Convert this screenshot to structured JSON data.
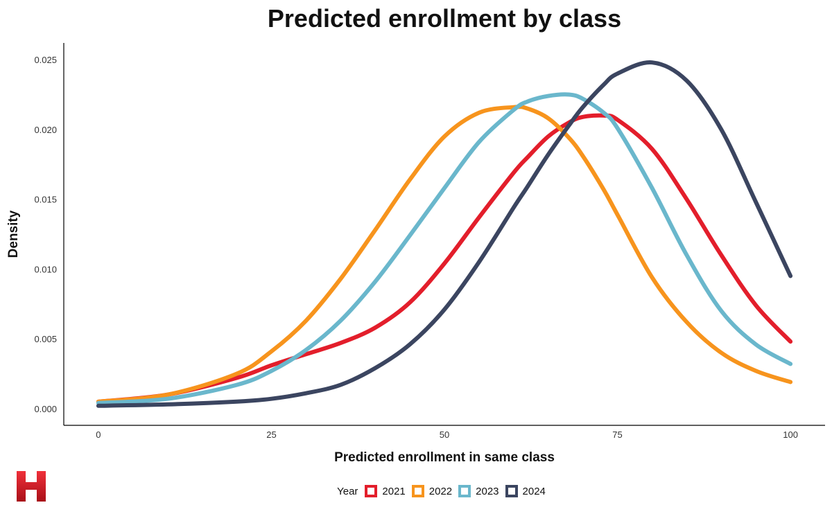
{
  "chart_data": {
    "type": "line",
    "title": "Predicted enrollment by class",
    "xlabel": "Predicted enrollment in same class",
    "ylabel": "Density",
    "xlim": [
      -5,
      105
    ],
    "ylim": [
      -0.0012,
      0.0262
    ],
    "x_ticks": [
      0,
      25,
      50,
      75,
      100
    ],
    "x_tick_labels": [
      "0",
      "25",
      "50",
      "75",
      "100"
    ],
    "y_ticks": [
      0.0,
      0.005,
      0.01,
      0.015,
      0.02,
      0.025
    ],
    "y_tick_labels": [
      "0.000",
      "0.005",
      "0.010",
      "0.015",
      "0.020",
      "0.025"
    ],
    "grid": false,
    "legend_title": "Year",
    "legend_position": "bottom",
    "x": [
      0,
      10,
      20,
      25,
      30,
      35,
      40,
      45,
      50,
      55,
      60,
      62,
      65,
      68,
      70,
      73,
      75,
      80,
      85,
      90,
      95,
      100
    ],
    "series": [
      {
        "name": "2021",
        "color": "#e31e2b",
        "values": [
          0.0005,
          0.001,
          0.0022,
          0.0031,
          0.0039,
          0.0047,
          0.0058,
          0.0076,
          0.0104,
          0.0137,
          0.0169,
          0.018,
          0.0195,
          0.0205,
          0.0209,
          0.021,
          0.0207,
          0.0186,
          0.015,
          0.011,
          0.0074,
          0.0048
        ]
      },
      {
        "name": "2022",
        "color": "#f7941d",
        "values": [
          0.0005,
          0.001,
          0.0025,
          0.0041,
          0.0063,
          0.0093,
          0.0128,
          0.0164,
          0.0195,
          0.0212,
          0.0216,
          0.0215,
          0.0208,
          0.0194,
          0.0181,
          0.0157,
          0.0139,
          0.0094,
          0.0062,
          0.004,
          0.0027,
          0.0019
        ]
      },
      {
        "name": "2023",
        "color": "#6ab7cc",
        "values": [
          0.0004,
          0.0007,
          0.0017,
          0.0027,
          0.0042,
          0.0063,
          0.0091,
          0.0124,
          0.0158,
          0.0191,
          0.0214,
          0.022,
          0.0224,
          0.0225,
          0.0222,
          0.0212,
          0.0201,
          0.0158,
          0.011,
          0.007,
          0.0046,
          0.0032
        ]
      },
      {
        "name": "2024",
        "color": "#3b4560",
        "values": [
          0.0002,
          0.0003,
          0.0005,
          0.0007,
          0.0011,
          0.0017,
          0.0029,
          0.0046,
          0.0071,
          0.0105,
          0.0144,
          0.0159,
          0.0182,
          0.0203,
          0.0216,
          0.0232,
          0.024,
          0.0248,
          0.0235,
          0.02,
          0.0148,
          0.0095
        ]
      }
    ]
  }
}
